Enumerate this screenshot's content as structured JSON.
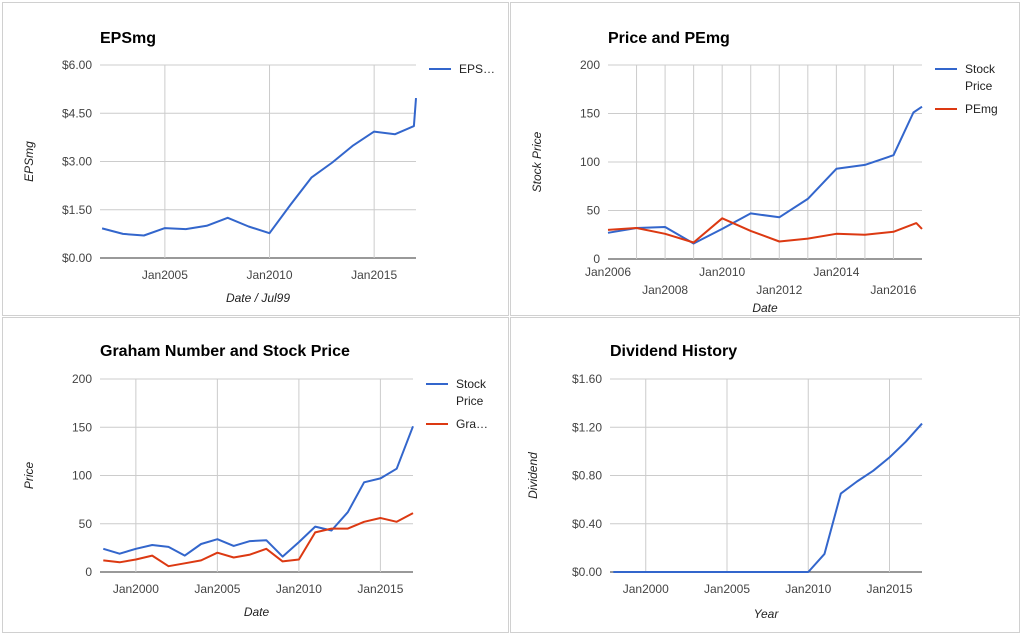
{
  "colors": {
    "blue": "#3366cc",
    "red": "#dc3912"
  },
  "chart_data": [
    {
      "id": "eps",
      "type": "line",
      "title": "EPSmg",
      "xlabel": "Date / Jul99",
      "ylabel": "EPSmg",
      "xlim": [
        2001.9,
        2017.0
      ],
      "ylim": [
        0,
        6
      ],
      "yticks": [
        {
          "value": 0,
          "label": "$0.00"
        },
        {
          "value": 1.5,
          "label": "$1.50"
        },
        {
          "value": 3,
          "label": "$3.00"
        },
        {
          "value": 4.5,
          "label": "$4.50"
        },
        {
          "value": 6,
          "label": "$6.00"
        }
      ],
      "xticks": [
        {
          "value": 2005,
          "label": "Jan2005",
          "row": 0
        },
        {
          "value": 2010,
          "label": "Jan2010",
          "row": 0
        },
        {
          "value": 2015,
          "label": "Jan2015",
          "row": 0
        }
      ],
      "xgrid": [
        2005,
        2010,
        2015
      ],
      "legend_position": "right",
      "series": [
        {
          "name": "EPS…",
          "color": "blue",
          "x": [
            2002,
            2003,
            2004,
            2005,
            2006,
            2007,
            2008,
            2009,
            2010,
            2011,
            2012,
            2013,
            2014,
            2015,
            2016,
            2016.9,
            2017
          ],
          "y": [
            0.92,
            0.75,
            0.7,
            0.93,
            0.9,
            1.0,
            1.25,
            0.98,
            0.77,
            1.65,
            2.5,
            2.97,
            3.5,
            3.93,
            3.85,
            4.1,
            4.97
          ]
        }
      ]
    },
    {
      "id": "pe",
      "type": "line",
      "title": "Price and PEmg",
      "xlabel": "Date",
      "ylabel": "Stock Price",
      "xlim": [
        2006.0,
        2017.0
      ],
      "ylim": [
        0,
        200
      ],
      "yticks": [
        {
          "value": 0,
          "label": "0"
        },
        {
          "value": 50,
          "label": "50"
        },
        {
          "value": 100,
          "label": "100"
        },
        {
          "value": 150,
          "label": "150"
        },
        {
          "value": 200,
          "label": "200"
        }
      ],
      "xticks": [
        {
          "value": 2006,
          "label": "Jan2006",
          "row": 0
        },
        {
          "value": 2008,
          "label": "Jan2008",
          "row": 1
        },
        {
          "value": 2010,
          "label": "Jan2010",
          "row": 0
        },
        {
          "value": 2012,
          "label": "Jan2012",
          "row": 1
        },
        {
          "value": 2014,
          "label": "Jan2014",
          "row": 0
        },
        {
          "value": 2016,
          "label": "Jan2016",
          "row": 1
        }
      ],
      "xgrid": [
        2007,
        2008,
        2009,
        2010,
        2011,
        2012,
        2013,
        2014,
        2015,
        2016
      ],
      "legend_position": "right",
      "series": [
        {
          "name": "Stock Price",
          "color": "blue",
          "x": [
            2006,
            2007,
            2008,
            2009,
            2010,
            2011,
            2012,
            2013,
            2014,
            2015,
            2016,
            2016.7,
            2017
          ],
          "y": [
            27,
            32,
            33,
            16,
            31,
            47,
            43,
            62,
            93,
            97,
            107,
            151,
            157
          ]
        },
        {
          "name": "PEmg",
          "color": "red",
          "x": [
            2006,
            2007,
            2008,
            2009,
            2010,
            2011,
            2012,
            2013,
            2014,
            2015,
            2016,
            2016.8,
            2017
          ],
          "y": [
            30,
            32,
            26,
            17,
            42,
            29,
            18,
            21,
            26,
            25,
            28,
            37,
            31
          ]
        }
      ]
    },
    {
      "id": "graham",
      "type": "line",
      "title": "Graham Number and Stock Price",
      "xlabel": "Date",
      "ylabel": "Price",
      "xlim": [
        1997.8,
        2017.0
      ],
      "ylim": [
        0,
        200
      ],
      "yticks": [
        {
          "value": 0,
          "label": "0"
        },
        {
          "value": 50,
          "label": "50"
        },
        {
          "value": 100,
          "label": "100"
        },
        {
          "value": 150,
          "label": "150"
        },
        {
          "value": 200,
          "label": "200"
        }
      ],
      "xticks": [
        {
          "value": 2000,
          "label": "Jan2000",
          "row": 0
        },
        {
          "value": 2005,
          "label": "Jan2005",
          "row": 0
        },
        {
          "value": 2010,
          "label": "Jan2010",
          "row": 0
        },
        {
          "value": 2015,
          "label": "Jan2015",
          "row": 0
        }
      ],
      "xgrid": [
        2000,
        2005,
        2010,
        2015
      ],
      "legend_position": "right",
      "series": [
        {
          "name": "Stock Price",
          "color": "blue",
          "x": [
            1998,
            1999,
            2000,
            2001,
            2002,
            2003,
            2004,
            2005,
            2006,
            2007,
            2008,
            2009,
            2010,
            2011,
            2012,
            2013,
            2014,
            2015,
            2016,
            2017
          ],
          "y": [
            24,
            19,
            24,
            28,
            26,
            17,
            29,
            34,
            27,
            32,
            33,
            16,
            31,
            47,
            43,
            62,
            93,
            97,
            107,
            151
          ]
        },
        {
          "name": "Gra…",
          "color": "red",
          "x": [
            1998,
            1999,
            2000,
            2001,
            2002,
            2003,
            2004,
            2005,
            2006,
            2007,
            2008,
            2009,
            2010,
            2011,
            2012,
            2013,
            2014,
            2015,
            2016,
            2017
          ],
          "y": [
            12,
            10,
            13,
            17,
            6,
            9,
            12,
            20,
            15,
            18,
            24,
            11,
            13,
            41,
            45,
            45,
            52,
            56,
            52,
            61
          ]
        }
      ]
    },
    {
      "id": "dividend",
      "type": "line",
      "title": "Dividend History",
      "xlabel": "Year",
      "ylabel": "Dividend",
      "xlim": [
        1997.8,
        2017.0
      ],
      "ylim": [
        0,
        1.6
      ],
      "yticks": [
        {
          "value": 0,
          "label": "$0.00"
        },
        {
          "value": 0.4,
          "label": "$0.40"
        },
        {
          "value": 0.8,
          "label": "$0.80"
        },
        {
          "value": 1.2,
          "label": "$1.20"
        },
        {
          "value": 1.6,
          "label": "$1.60"
        }
      ],
      "xticks": [
        {
          "value": 2000,
          "label": "Jan2000",
          "row": 0
        },
        {
          "value": 2005,
          "label": "Jan2005",
          "row": 0
        },
        {
          "value": 2010,
          "label": "Jan2010",
          "row": 0
        },
        {
          "value": 2015,
          "label": "Jan2015",
          "row": 0
        }
      ],
      "xgrid": [
        2000,
        2005,
        2010,
        2015
      ],
      "legend_position": "none",
      "series": [
        {
          "name": "",
          "color": "blue",
          "x": [
            1998,
            1999,
            2000,
            2001,
            2002,
            2003,
            2004,
            2005,
            2006,
            2007,
            2008,
            2009,
            2010,
            2011,
            2012,
            2013,
            2014,
            2015,
            2016,
            2017
          ],
          "y": [
            0,
            0,
            0,
            0,
            0,
            0,
            0,
            0,
            0,
            0,
            0,
            0,
            0,
            0.15,
            0.65,
            0.75,
            0.84,
            0.95,
            1.08,
            1.23
          ]
        }
      ]
    }
  ]
}
